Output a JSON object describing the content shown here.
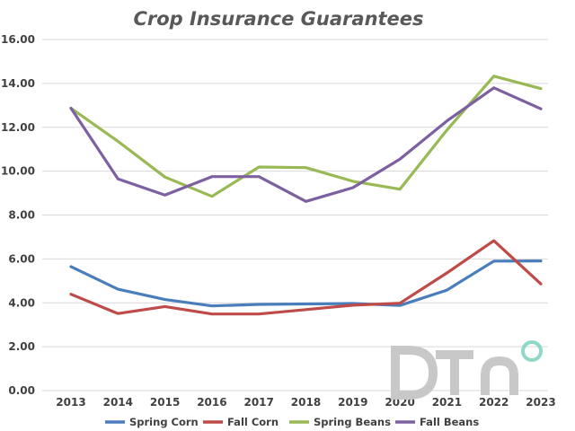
{
  "chart_data": {
    "type": "line",
    "title": "Crop Insurance Guarantees",
    "xlabel": "",
    "ylabel": "",
    "ylim": [
      0,
      16
    ],
    "yticks": [
      "0.00",
      "2.00",
      "4.00",
      "6.00",
      "8.00",
      "10.00",
      "12.00",
      "14.00",
      "16.00"
    ],
    "categories": [
      "2013",
      "2014",
      "2015",
      "2016",
      "2017",
      "2018",
      "2019",
      "2020",
      "2021",
      "2022",
      "2023"
    ],
    "grid": true,
    "legend_position": "bottom",
    "series": [
      {
        "name": "Spring Corn",
        "color": "#4a7ebb",
        "values": [
          5.65,
          4.62,
          4.15,
          3.86,
          3.93,
          3.95,
          3.97,
          3.88,
          4.58,
          5.9,
          5.91
        ]
      },
      {
        "name": "Fall Corn",
        "color": "#be4b48",
        "values": [
          4.39,
          3.51,
          3.83,
          3.49,
          3.49,
          3.69,
          3.89,
          3.98,
          5.36,
          6.83,
          4.86
        ]
      },
      {
        "name": "Spring Beans",
        "color": "#98b954",
        "values": [
          12.87,
          11.36,
          9.73,
          8.85,
          10.19,
          10.16,
          9.54,
          9.18,
          11.87,
          14.33,
          13.76
        ]
      },
      {
        "name": "Fall Beans",
        "color": "#7d60a0",
        "values": [
          12.87,
          9.65,
          8.91,
          9.75,
          9.75,
          8.62,
          9.25,
          10.55,
          12.29,
          13.8,
          12.84
        ]
      }
    ]
  },
  "watermark": {
    "text": "DTN",
    "color": "#c8c8c8",
    "accent": "#8fd8c8"
  }
}
